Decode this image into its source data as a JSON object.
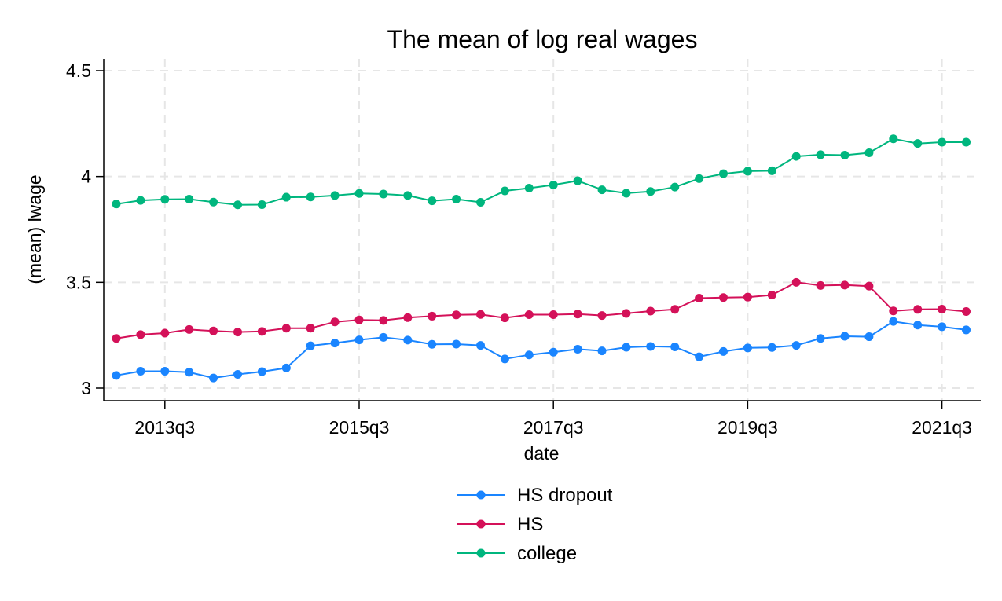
{
  "chart_data": {
    "type": "line",
    "title": "The mean of log real wages",
    "xlabel": "date",
    "ylabel": "(mean) lwage",
    "x_start": "2013q1",
    "x_ticks": [
      "2013q3",
      "2015q3",
      "2017q3",
      "2019q3",
      "2021q3"
    ],
    "y_ticks": [
      "3",
      "3.5",
      "4",
      "4.5"
    ],
    "ylim": [
      2.94,
      4.56
    ],
    "grid": true,
    "legend_position": "bottom",
    "series": [
      {
        "name": "HS dropout",
        "color": "#1a85ff",
        "values": [
          3.06,
          3.08,
          3.08,
          3.075,
          3.048,
          3.065,
          3.078,
          3.095,
          3.2,
          3.213,
          3.228,
          3.24,
          3.227,
          3.207,
          3.208,
          3.202,
          3.138,
          3.157,
          3.17,
          3.184,
          3.176,
          3.193,
          3.197,
          3.195,
          3.148,
          3.173,
          3.19,
          3.192,
          3.202,
          3.235,
          3.245,
          3.243,
          3.315,
          3.298,
          3.29,
          3.275
        ]
      },
      {
        "name": "HS",
        "color": "#d41159",
        "values": [
          3.235,
          3.253,
          3.26,
          3.277,
          3.27,
          3.265,
          3.268,
          3.283,
          3.283,
          3.313,
          3.322,
          3.32,
          3.333,
          3.34,
          3.346,
          3.348,
          3.332,
          3.347,
          3.347,
          3.35,
          3.343,
          3.353,
          3.364,
          3.372,
          3.425,
          3.428,
          3.43,
          3.44,
          3.5,
          3.485,
          3.487,
          3.482,
          3.365,
          3.372,
          3.373,
          3.362
        ]
      },
      {
        "name": "college",
        "color": "#00b67e",
        "values": [
          3.87,
          3.887,
          3.892,
          3.893,
          3.879,
          3.866,
          3.867,
          3.902,
          3.903,
          3.91,
          3.92,
          3.917,
          3.91,
          3.885,
          3.893,
          3.878,
          3.932,
          3.945,
          3.96,
          3.98,
          3.937,
          3.921,
          3.929,
          3.95,
          3.99,
          4.013,
          4.025,
          4.027,
          4.095,
          4.103,
          4.101,
          4.112,
          4.178,
          4.156,
          4.162,
          4.162
        ]
      }
    ]
  }
}
